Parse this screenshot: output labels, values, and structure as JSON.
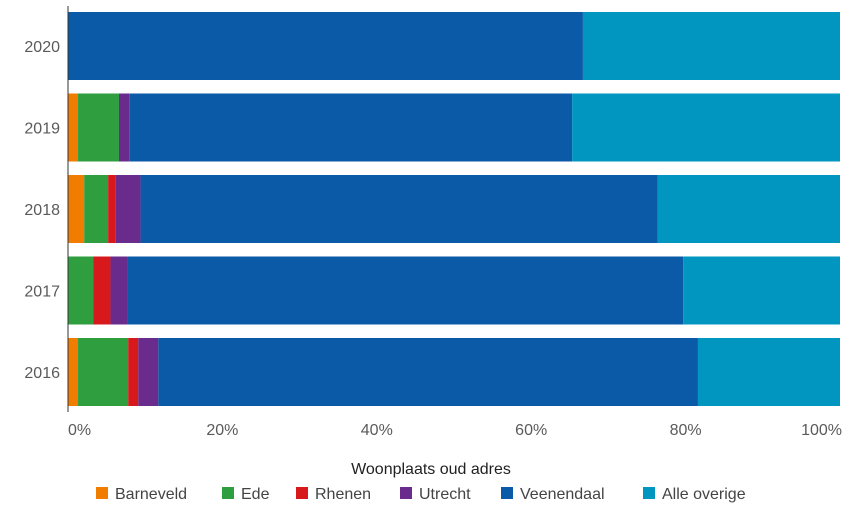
{
  "chart_data": {
    "type": "bar",
    "orientation": "horizontal",
    "stacked": "percent",
    "categories": [
      "2020",
      "2019",
      "2018",
      "2017",
      "2016"
    ],
    "series": [
      {
        "name": "Barneveld",
        "color": "#f07d00",
        "values": [
          0,
          1.3,
          2.1,
          0,
          1.3
        ]
      },
      {
        "name": "Ede",
        "color": "#2e9e3f",
        "values": [
          0,
          5.3,
          3.1,
          3.3,
          6.5
        ]
      },
      {
        "name": "Rhenen",
        "color": "#d7191c",
        "values": [
          0,
          0,
          1.0,
          2.2,
          1.3
        ]
      },
      {
        "name": "Utrecht",
        "color": "#6a2c8c",
        "values": [
          0,
          1.4,
          3.2,
          2.2,
          2.6
        ]
      },
      {
        "name": "Veenendaal",
        "color": "#0a5aa8",
        "values": [
          66.7,
          57.3,
          67.0,
          72.0,
          69.9
        ]
      },
      {
        "name": "Alle overige",
        "color": "#0096bf",
        "values": [
          33.3,
          34.7,
          23.6,
          20.3,
          18.4
        ]
      }
    ],
    "x_tick_labels": [
      "0%",
      "20%",
      "40%",
      "60%",
      "80%",
      "100%"
    ],
    "x_ticks": [
      0,
      20,
      40,
      60,
      80,
      100
    ],
    "xlim": [
      0,
      100
    ],
    "legend": {
      "title": "Woonplaats oud adres",
      "position": "bottom"
    },
    "grid": false
  }
}
